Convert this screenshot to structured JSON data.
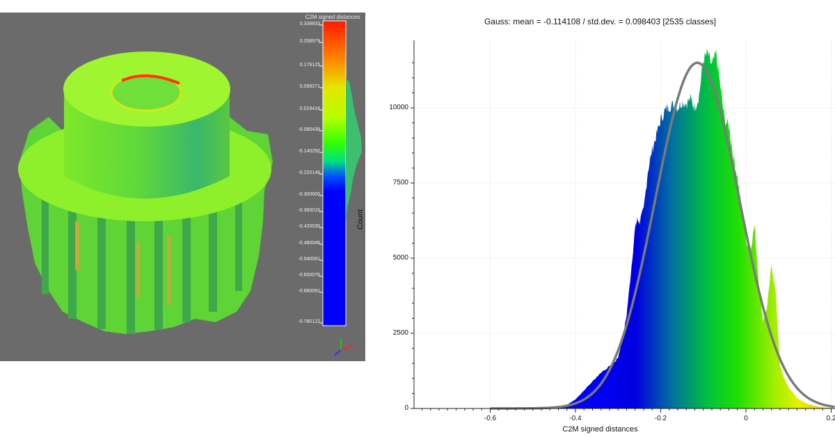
{
  "viewer": {
    "scalebar_title": "C2M signed distances",
    "scalebar_ticks": [
      "0.338833",
      "0.258979",
      "0.179125",
      "0.099271",
      "0.019416",
      "-0.060438",
      "-0.140292",
      "-0.220146",
      "-0.300000",
      "-0.360015",
      "-0.420030",
      "-0.480046",
      "-0.540061",
      "-0.600076",
      "-0.660091",
      "-0.780122"
    ]
  },
  "chart_data": {
    "type": "bar",
    "title": "Gauss: mean = -0.114108 / std.dev. = 0.098403 [2535 classes]",
    "xlabel": "C2M signed distances",
    "ylabel": "Count",
    "xlim": [
      -0.78,
      0.21
    ],
    "ylim": [
      0,
      12000
    ],
    "xticks": [
      "-0.6",
      "-0.4",
      "-0.2",
      "0",
      "0.2"
    ],
    "yticks": [
      "0",
      "2500",
      "5000",
      "7500",
      "10000"
    ],
    "grid": true,
    "gauss": {
      "mean": -0.114108,
      "std": 0.098403,
      "classes": 2535,
      "peak": 11500
    },
    "histogram_x": [
      -0.78,
      -0.5,
      -0.46,
      -0.42,
      -0.4,
      -0.38,
      -0.36,
      -0.34,
      -0.32,
      -0.31,
      -0.3,
      -0.29,
      -0.28,
      -0.27,
      -0.26,
      -0.255,
      -0.25,
      -0.24,
      -0.23,
      -0.22,
      -0.21,
      -0.2,
      -0.19,
      -0.18,
      -0.17,
      -0.16,
      -0.15,
      -0.14,
      -0.13,
      -0.12,
      -0.11,
      -0.1,
      -0.09,
      -0.08,
      -0.07,
      -0.06,
      -0.05,
      -0.04,
      -0.03,
      -0.02,
      -0.01,
      0,
      0.01,
      0.02,
      0.03,
      0.04,
      0.05,
      0.06,
      0.07,
      0.08,
      0.09,
      0.1,
      0.12,
      0.14,
      0.16,
      0.18,
      0.2,
      0.21
    ],
    "histogram_y": [
      0,
      0,
      20,
      120,
      300,
      600,
      900,
      1200,
      1400,
      1500,
      1700,
      2300,
      3100,
      4500,
      6000,
      6300,
      6200,
      6600,
      7900,
      8600,
      9100,
      9600,
      9900,
      10050,
      10100,
      10000,
      10200,
      10150,
      10300,
      10000,
      10400,
      11600,
      11800,
      11400,
      11800,
      10700,
      9600,
      9400,
      8400,
      7700,
      6600,
      5600,
      5200,
      6100,
      4200,
      2900,
      3400,
      4800,
      3800,
      1400,
      1000,
      700,
      350,
      180,
      90,
      40,
      10,
      0
    ]
  }
}
